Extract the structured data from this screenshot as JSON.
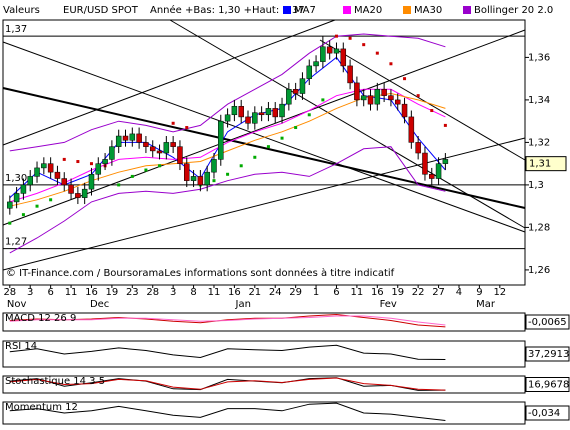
{
  "chart_data": [
    {
      "type": "candlestick",
      "label": "Valeurs",
      "title": "EUR/USD SPOT",
      "subtitle": "Année +Bas: 1,30 +Haut: 1,37",
      "annotation": "© IT-Finance.com / BoursoramaLes informations sont données à titre indicatif",
      "open": [
        1.289,
        1.292,
        1.296,
        1.3,
        1.304,
        1.308,
        1.31,
        1.306,
        1.303,
        1.3,
        1.296,
        1.294,
        1.298,
        1.305,
        1.31,
        1.312,
        1.318,
        1.323,
        1.321,
        1.324,
        1.32,
        1.318,
        1.316,
        1.315,
        1.32,
        1.318,
        1.31,
        1.302,
        1.304,
        1.3,
        1.306,
        1.312,
        1.33,
        1.333,
        1.337,
        1.332,
        1.329,
        1.334,
        1.333,
        1.336,
        1.332,
        1.338,
        1.345,
        1.343,
        1.35,
        1.356,
        1.358,
        1.365,
        1.362,
        1.364,
        1.356,
        1.348,
        1.34,
        1.342,
        1.338,
        1.345,
        1.342,
        1.34,
        1.338,
        1.332,
        1.32,
        1.315,
        1.305,
        1.303,
        1.31
      ],
      "high": [
        1.295,
        1.299,
        1.303,
        1.307,
        1.311,
        1.313,
        1.313,
        1.309,
        1.306,
        1.303,
        1.299,
        1.301,
        1.308,
        1.313,
        1.315,
        1.321,
        1.326,
        1.326,
        1.327,
        1.327,
        1.323,
        1.321,
        1.319,
        1.323,
        1.323,
        1.321,
        1.313,
        1.307,
        1.307,
        1.309,
        1.315,
        1.333,
        1.336,
        1.34,
        1.34,
        1.335,
        1.337,
        1.337,
        1.339,
        1.339,
        1.341,
        1.348,
        1.348,
        1.353,
        1.359,
        1.361,
        1.37,
        1.368,
        1.367,
        1.367,
        1.359,
        1.351,
        1.345,
        1.345,
        1.348,
        1.348,
        1.345,
        1.343,
        1.341,
        1.335,
        1.323,
        1.318,
        1.308,
        1.313,
        1.315
      ],
      "low": [
        1.286,
        1.289,
        1.293,
        1.297,
        1.301,
        1.305,
        1.303,
        1.3,
        1.297,
        1.293,
        1.291,
        1.291,
        1.295,
        1.302,
        1.307,
        1.309,
        1.315,
        1.318,
        1.318,
        1.317,
        1.315,
        1.313,
        1.312,
        1.312,
        1.315,
        1.307,
        1.299,
        1.299,
        1.297,
        1.297,
        1.303,
        1.309,
        1.327,
        1.33,
        1.329,
        1.326,
        1.326,
        1.33,
        1.33,
        1.329,
        1.329,
        1.335,
        1.34,
        1.34,
        1.347,
        1.353,
        1.355,
        1.359,
        1.359,
        1.353,
        1.345,
        1.337,
        1.337,
        1.335,
        1.335,
        1.339,
        1.337,
        1.335,
        1.329,
        1.317,
        1.312,
        1.302,
        1.3,
        1.3,
        1.307
      ],
      "close": [
        1.292,
        1.296,
        1.3,
        1.304,
        1.308,
        1.31,
        1.306,
        1.303,
        1.3,
        1.296,
        1.294,
        1.298,
        1.305,
        1.31,
        1.312,
        1.318,
        1.323,
        1.321,
        1.324,
        1.32,
        1.318,
        1.316,
        1.315,
        1.32,
        1.318,
        1.31,
        1.302,
        1.304,
        1.3,
        1.306,
        1.312,
        1.33,
        1.333,
        1.337,
        1.332,
        1.329,
        1.334,
        1.333,
        1.336,
        1.332,
        1.338,
        1.345,
        1.343,
        1.35,
        1.356,
        1.358,
        1.365,
        1.362,
        1.364,
        1.356,
        1.348,
        1.34,
        1.342,
        1.338,
        1.345,
        1.342,
        1.34,
        1.338,
        1.332,
        1.32,
        1.315,
        1.305,
        1.303,
        1.31,
        1.312
      ],
      "up_color": "#009933",
      "down_color": "#cc0000",
      "xlim": [
        -1,
        75.7
      ],
      "xticks": [
        {
          "value": 0,
          "label": "28"
        },
        {
          "value": 3,
          "label": "3"
        },
        {
          "value": 6,
          "label": "6"
        },
        {
          "value": 9,
          "label": "11"
        },
        {
          "value": 12,
          "label": "16"
        },
        {
          "value": 15,
          "label": "19"
        },
        {
          "value": 18,
          "label": "23"
        },
        {
          "value": 21,
          "label": "28"
        },
        {
          "value": 24,
          "label": "3"
        },
        {
          "value": 27,
          "label": "8"
        },
        {
          "value": 30,
          "label": "11"
        },
        {
          "value": 33,
          "label": "16"
        },
        {
          "value": 36,
          "label": "21"
        },
        {
          "value": 39,
          "label": "24"
        },
        {
          "value": 42,
          "label": "29"
        },
        {
          "value": 45,
          "label": "1"
        },
        {
          "value": 48,
          "label": "6"
        },
        {
          "value": 51,
          "label": "11"
        },
        {
          "value": 54,
          "label": "16"
        },
        {
          "value": 57,
          "label": "19"
        },
        {
          "value": 60,
          "label": "22"
        },
        {
          "value": 63,
          "label": "27"
        },
        {
          "value": 66,
          "label": "4"
        },
        {
          "value": 69,
          "label": "9"
        },
        {
          "value": 72,
          "label": "12"
        }
      ],
      "months": [
        {
          "value": 1,
          "label": "Nov"
        },
        {
          "value": 13.2,
          "label": "Dec"
        },
        {
          "value": 34.3,
          "label": "Jan"
        },
        {
          "value": 55.6,
          "label": "Fev"
        },
        {
          "value": 69.9,
          "label": "Mar"
        }
      ],
      "ylim": [
        1.2529,
        1.3776
      ],
      "yticks": [
        {
          "value": 1.36,
          "label": "1,36"
        },
        {
          "value": 1.34,
          "label": "1,34"
        },
        {
          "value": 1.32,
          "label": "1,32"
        },
        {
          "value": 1.3,
          "label": "1,3"
        },
        {
          "value": 1.28,
          "label": "1,28"
        },
        {
          "value": 1.26,
          "label": "1,26"
        }
      ],
      "levels": [
        {
          "value": 1.37,
          "label": "1,37"
        },
        {
          "value": 1.3,
          "label": "1,30"
        },
        {
          "value": 1.27,
          "label": "1,27"
        }
      ],
      "last": {
        "value": 1.31,
        "label": "1,31"
      },
      "series": [
        {
          "name": "MA7",
          "color": "#0000ff",
          "x": [
            0,
            4,
            8,
            12,
            16,
            20,
            24,
            28,
            32,
            36,
            40,
            44,
            48,
            52,
            56,
            60,
            64
          ],
          "values": [
            1.294,
            1.306,
            1.3,
            1.305,
            1.32,
            1.32,
            1.313,
            1.303,
            1.325,
            1.333,
            1.336,
            1.35,
            1.36,
            1.342,
            1.34,
            1.322,
            1.307
          ]
        },
        {
          "name": "MA20",
          "color": "#ff00ff",
          "x": [
            0,
            4,
            8,
            12,
            16,
            20,
            24,
            28,
            32,
            36,
            40,
            44,
            48,
            52,
            56,
            60,
            64
          ],
          "values": [
            1.292,
            1.296,
            1.301,
            1.307,
            1.312,
            1.313,
            1.312,
            1.313,
            1.32,
            1.325,
            1.329,
            1.335,
            1.342,
            1.345,
            1.345,
            1.338,
            1.332
          ]
        },
        {
          "name": "MA30",
          "color": "#ff8c00",
          "x": [
            0,
            4,
            8,
            12,
            16,
            20,
            24,
            28,
            32,
            36,
            40,
            44,
            48,
            52,
            56,
            60,
            64
          ],
          "values": [
            1.29,
            1.293,
            1.297,
            1.302,
            1.306,
            1.309,
            1.31,
            1.311,
            1.316,
            1.321,
            1.325,
            1.33,
            1.336,
            1.341,
            1.343,
            1.34,
            1.336
          ]
        },
        {
          "name": "Bollinger 20 2.0",
          "color": "#9900cc",
          "x": [
            0,
            4,
            8,
            12,
            16,
            20,
            24,
            28,
            32,
            36,
            40,
            44,
            48,
            52,
            56,
            60,
            64
          ],
          "upper": [
            1.316,
            1.318,
            1.32,
            1.326,
            1.33,
            1.328,
            1.325,
            1.328,
            1.338,
            1.345,
            1.352,
            1.362,
            1.37,
            1.371,
            1.37,
            1.369,
            1.365
          ],
          "lower": [
            1.268,
            1.275,
            1.283,
            1.292,
            1.296,
            1.297,
            1.296,
            1.298,
            1.302,
            1.305,
            1.306,
            1.304,
            1.31,
            1.317,
            1.318,
            1.3,
            1.297
          ]
        }
      ],
      "sar": [
        {
          "color": "#cc0000",
          "x": [
            8,
            10,
            12,
            14,
            24,
            26,
            48,
            50,
            52,
            54,
            56,
            58,
            60,
            62,
            64
          ],
          "values": [
            1.312,
            1.311,
            1.31,
            1.309,
            1.329,
            1.327,
            1.37,
            1.369,
            1.366,
            1.362,
            1.357,
            1.35,
            1.342,
            1.335,
            1.328
          ]
        },
        {
          "color": "#00aa00",
          "x": [
            0,
            2,
            4,
            6,
            16,
            18,
            20,
            22,
            28,
            30,
            32,
            34,
            36,
            38,
            40,
            42,
            44,
            46
          ],
          "values": [
            1.282,
            1.286,
            1.29,
            1.293,
            1.3,
            1.304,
            1.307,
            1.309,
            1.3,
            1.302,
            1.305,
            1.309,
            1.313,
            1.318,
            1.322,
            1.327,
            1.333,
            1.34
          ]
        }
      ]
    },
    {
      "type": "line",
      "title": "MACD 12 26 9",
      "ylim": [
        -0.012,
        0.012
      ],
      "last": {
        "value": -0.0065,
        "label": "-0,0065"
      },
      "series": [
        {
          "color": "#cc0000",
          "x": [
            0,
            4,
            8,
            12,
            16,
            20,
            24,
            28,
            32,
            36,
            40,
            44,
            48,
            52,
            56,
            60,
            64
          ],
          "values": [
            0.002,
            0.004,
            0.003,
            0.004,
            0.006,
            0.004,
            0.001,
            -0.001,
            0.003,
            0.005,
            0.005,
            0.008,
            0.01,
            0.006,
            0.002,
            -0.004,
            -0.0065
          ]
        },
        {
          "color": "#ff66cc",
          "x": [
            0,
            4,
            8,
            12,
            16,
            20,
            24,
            28,
            32,
            36,
            40,
            44,
            48,
            52,
            56,
            60,
            64
          ],
          "values": [
            0.001,
            0.003,
            0.003,
            0.003,
            0.005,
            0.005,
            0.003,
            0.001,
            0.002,
            0.004,
            0.005,
            0.006,
            0.008,
            0.008,
            0.005,
            0.0,
            -0.004
          ]
        }
      ]
    },
    {
      "type": "line",
      "title": "RSI 14",
      "ylim": [
        20,
        80
      ],
      "last": {
        "value": 37.2913,
        "label": "37,2913"
      },
      "series": [
        {
          "color": "#000000",
          "x": [
            0,
            4,
            8,
            12,
            16,
            20,
            24,
            28,
            32,
            36,
            40,
            44,
            48,
            52,
            56,
            60,
            64
          ],
          "values": [
            55,
            62,
            50,
            56,
            64,
            58,
            48,
            42,
            62,
            60,
            58,
            66,
            70,
            52,
            50,
            38,
            37.2913
          ]
        }
      ]
    },
    {
      "type": "line",
      "title": "Stochastique 14 3 5",
      "ylim": [
        0,
        100
      ],
      "last": {
        "value": 16.9678,
        "label": "16,9678"
      },
      "series": [
        {
          "color": "#000000",
          "x": [
            0,
            4,
            8,
            12,
            16,
            20,
            24,
            28,
            32,
            36,
            40,
            44,
            48,
            52,
            56,
            60,
            64
          ],
          "values": [
            70,
            85,
            40,
            60,
            85,
            70,
            25,
            20,
            80,
            70,
            60,
            85,
            90,
            40,
            45,
            15,
            16.9678
          ]
        },
        {
          "color": "#cc0000",
          "x": [
            0,
            4,
            8,
            12,
            16,
            20,
            24,
            28,
            32,
            36,
            40,
            44,
            48,
            52,
            56,
            60,
            64
          ],
          "values": [
            65,
            80,
            50,
            55,
            80,
            72,
            35,
            22,
            65,
            72,
            62,
            80,
            88,
            55,
            45,
            22,
            17
          ]
        }
      ]
    },
    {
      "type": "line",
      "title": "Momentum 12",
      "ylim": [
        -0.05,
        0.05
      ],
      "last": {
        "value": -0.034,
        "label": "-0,034"
      },
      "series": [
        {
          "color": "#000000",
          "x": [
            0,
            4,
            8,
            12,
            16,
            20,
            24,
            28,
            32,
            36,
            40,
            44,
            48,
            52,
            56,
            60,
            64
          ],
          "values": [
            0.01,
            0.02,
            0.0,
            0.01,
            0.03,
            0.01,
            -0.01,
            -0.02,
            0.02,
            0.02,
            0.01,
            0.04,
            0.045,
            0.0,
            -0.005,
            -0.02,
            -0.034
          ]
        }
      ]
    }
  ]
}
